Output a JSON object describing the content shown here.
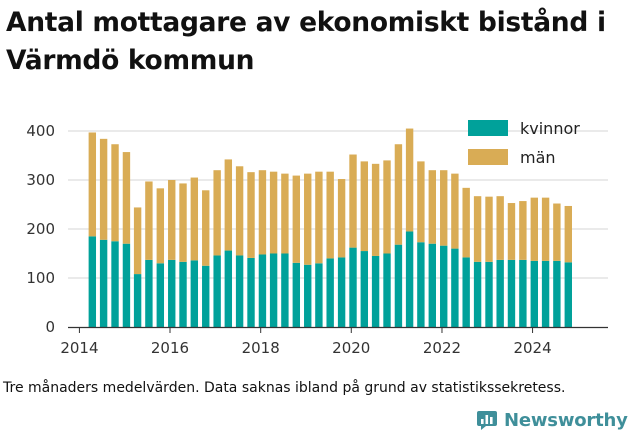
{
  "title": "Antal mottagare av ekonomiskt bistånd i Värmdö kommun",
  "caption": "Tre månaders medelvärden. Data saknas ibland på grund av statistikssekretess.",
  "brand": "Newsworthy",
  "colors": {
    "kvinnor": "#00a19a",
    "man": "#d9ac55",
    "grid": "#d6d6d6",
    "axis": "#333333",
    "brand": "#3f8f9a"
  },
  "chart_data": {
    "type": "bar",
    "stacked": true,
    "title": "Antal mottagare av ekonomiskt bistånd i Värmdö kommun",
    "xlabel": "",
    "ylabel": "",
    "ylim": [
      0,
      400
    ],
    "yticks": [
      0,
      100,
      200,
      300,
      400
    ],
    "xticks": [
      "2014",
      "2016",
      "2018",
      "2020",
      "2022",
      "2024"
    ],
    "x_range": [
      "2013-10-01",
      "2025-08-31"
    ],
    "grid": true,
    "legend": "top-right",
    "x": [
      "2014-04",
      "2014-07",
      "2014-10",
      "2015-01",
      "2015-04",
      "2015-07",
      "2015-10",
      "2016-01",
      "2016-04",
      "2016-07",
      "2016-10",
      "2017-01",
      "2017-04",
      "2017-07",
      "2017-10",
      "2018-01",
      "2018-04",
      "2018-07",
      "2018-10",
      "2019-01",
      "2019-04",
      "2019-07",
      "2019-10",
      "2020-01",
      "2020-04",
      "2020-07",
      "2020-10",
      "2021-01",
      "2021-04",
      "2021-07",
      "2021-10",
      "2022-01",
      "2022-04",
      "2022-07",
      "2022-10",
      "2023-01",
      "2023-04",
      "2023-07",
      "2023-10",
      "2024-01",
      "2024-04",
      "2024-07",
      "2024-10"
    ],
    "series": [
      {
        "name": "kvinnor",
        "values": [
          185,
          178,
          175,
          170,
          108,
          137,
          130,
          137,
          133,
          136,
          125,
          146,
          156,
          146,
          141,
          148,
          150,
          150,
          131,
          127,
          130,
          140,
          142,
          162,
          155,
          145,
          150,
          168,
          195,
          173,
          170,
          166,
          160,
          142,
          133,
          133,
          137,
          137,
          137,
          135,
          135,
          135,
          132
        ]
      },
      {
        "name": "män",
        "values": [
          212,
          206,
          198,
          187,
          136,
          160,
          153,
          163,
          160,
          169,
          154,
          174,
          186,
          182,
          175,
          172,
          167,
          163,
          178,
          186,
          187,
          177,
          160,
          190,
          183,
          188,
          190,
          205,
          210,
          165,
          150,
          154,
          153,
          142,
          134,
          133,
          130,
          116,
          120,
          129,
          129,
          117,
          115
        ]
      }
    ]
  }
}
